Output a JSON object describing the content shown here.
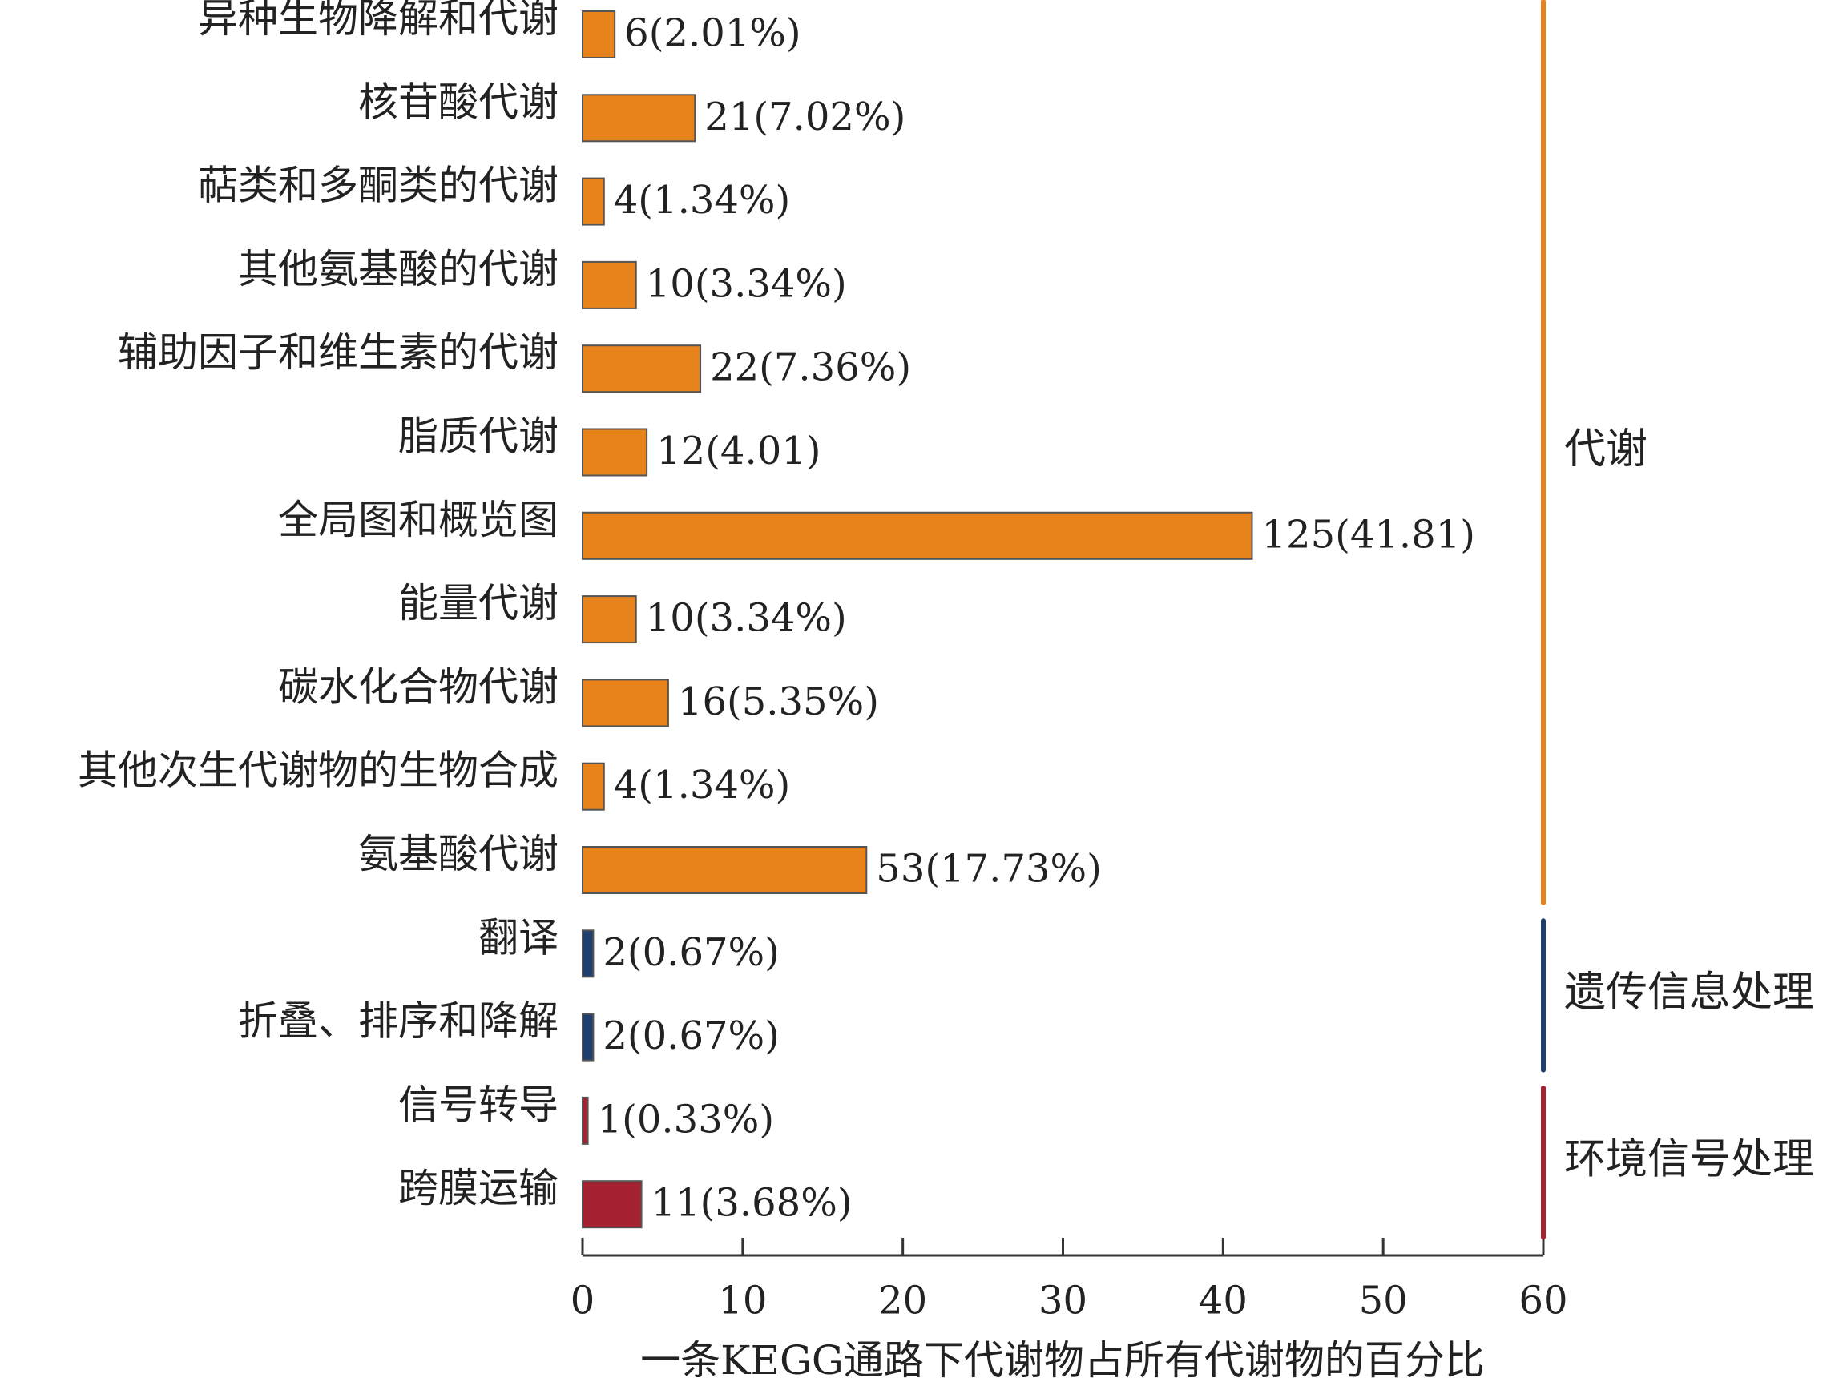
{
  "chart_data": {
    "type": "bar",
    "orientation": "horizontal",
    "x_label": "一条KEGG通路下代谢物占所有代谢物的百分比",
    "categories": [
      "异种生物降解和代谢",
      "核苷酸代谢",
      "萜类和多酮类的代谢",
      "其他氨基酸的代谢",
      "辅助因子和维生素的代谢",
      "脂质代谢",
      "全局图和概览图",
      "能量代谢",
      "碳水化合物代谢",
      "其他次生代谢物的生物合成",
      "氨基酸代谢",
      "翻译",
      "折叠、排序和降解",
      "信号转导",
      "跨膜运输"
    ],
    "series": [
      {
        "name": "代谢",
        "color": "#e8821a",
        "values": [
          2.01,
          7.02,
          1.34,
          3.34,
          7.36,
          4.01,
          41.81,
          3.34,
          5.35,
          1.34,
          17.73,
          null,
          null,
          null,
          null
        ],
        "value_labels": [
          "6(2.01%)",
          "21(7.02%)",
          "4(1.34%)",
          "10(3.34%)",
          "22(7.36%)",
          "12(4.01)",
          "125(41.81)",
          "10(3.34%)",
          "16(5.35%)",
          "4(1.34%)",
          "53(17.73%)",
          null,
          null,
          null,
          null
        ]
      },
      {
        "name": "遗传信息处理",
        "color": "#1f3f6e",
        "values": [
          null,
          null,
          null,
          null,
          null,
          null,
          null,
          null,
          null,
          null,
          null,
          0.67,
          0.67,
          null,
          null
        ],
        "value_labels": [
          null,
          null,
          null,
          null,
          null,
          null,
          null,
          null,
          null,
          null,
          null,
          "2(0.67%)",
          "2(0.67%)",
          null,
          null
        ]
      },
      {
        "name": "环境信号处理",
        "color": "#a52232",
        "values": [
          null,
          null,
          null,
          null,
          null,
          null,
          null,
          null,
          null,
          null,
          null,
          null,
          null,
          0.33,
          3.68
        ],
        "value_labels": [
          null,
          null,
          null,
          null,
          null,
          null,
          null,
          null,
          null,
          null,
          null,
          null,
          null,
          "1(0.33%)",
          "11(3.68%)"
        ]
      }
    ],
    "xlim": [
      0,
      60
    ],
    "xticks": [
      0,
      10,
      20,
      30,
      40,
      50,
      60
    ],
    "grid": false
  }
}
